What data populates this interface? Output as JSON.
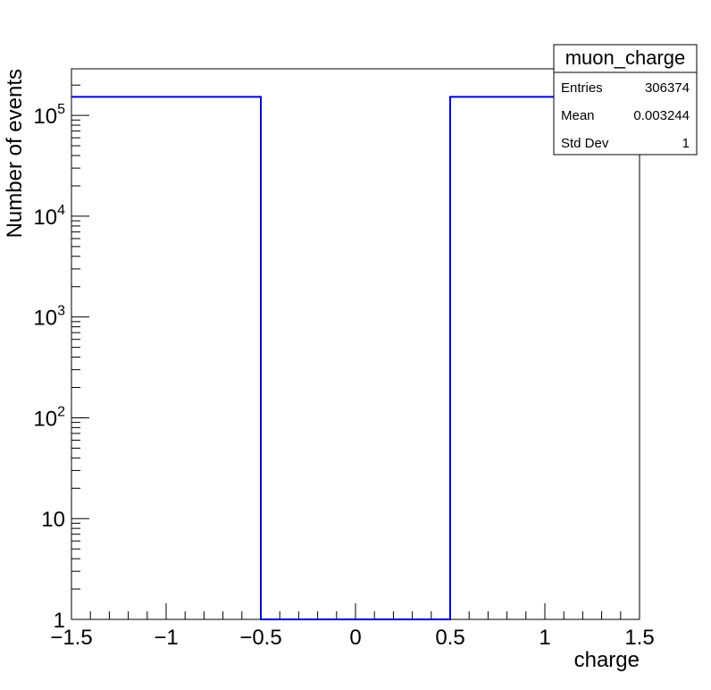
{
  "chart_data": {
    "type": "histogram",
    "xlabel": "charge",
    "ylabel": "Number of events",
    "xlim": [
      -1.5,
      1.5
    ],
    "ylim": [
      1,
      290000
    ],
    "log_y": true,
    "grid": false,
    "line_color": "#0000cc",
    "bins": [
      {
        "x0": -1.5,
        "x1": -0.5,
        "value": 153000
      },
      {
        "x0": -0.5,
        "x1": 0.5,
        "value": 1
      },
      {
        "x0": 0.5,
        "x1": 1.5,
        "value": 153000
      }
    ],
    "x_ticks": [
      -1.5,
      -1,
      -0.5,
      0,
      0.5,
      1,
      1.5
    ],
    "x_tick_labels": [
      "−1.5",
      "−1",
      "−0.5",
      "0",
      "0.5",
      "1",
      "1.5"
    ],
    "y_ticks": [
      1,
      10,
      100,
      1000,
      10000,
      100000
    ],
    "y_tick_labels": [
      {
        "base": "1",
        "exp": ""
      },
      {
        "base": "10",
        "exp": ""
      },
      {
        "base": "10",
        "exp": "2"
      },
      {
        "base": "10",
        "exp": "3"
      },
      {
        "base": "10",
        "exp": "4"
      },
      {
        "base": "10",
        "exp": "5"
      }
    ],
    "stats_box": {
      "title": "muon_charge",
      "rows": [
        {
          "label": "Entries",
          "value": "306374"
        },
        {
          "label": "Mean",
          "value": "0.003244"
        },
        {
          "label": "Std Dev",
          "value": "1"
        }
      ],
      "placement": "top-right"
    }
  }
}
